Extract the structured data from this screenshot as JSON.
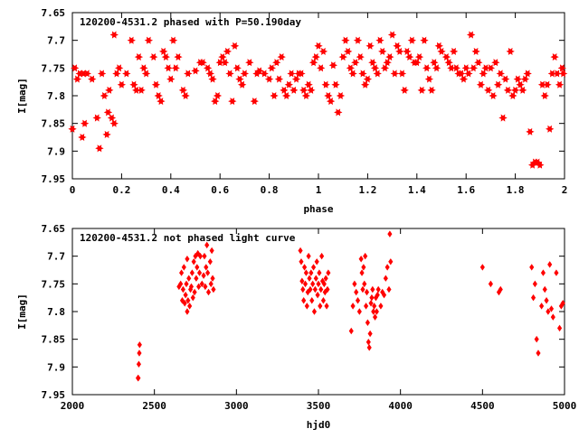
{
  "chart_data": [
    {
      "type": "scatter",
      "title": "120200-4531.2 phased with P=50.190day",
      "xlabel": "phase",
      "ylabel": "I[mag]",
      "xlim": [
        0,
        2
      ],
      "ylim": [
        7.95,
        7.65
      ],
      "y_inverted": true,
      "grid": false,
      "marker": "star",
      "color": "#ff0000",
      "x_ticks": [
        "0",
        "0.2",
        "0.4",
        "0.6",
        "0.8",
        "1",
        "1.2",
        "1.4",
        "1.6",
        "1.8",
        "2"
      ],
      "y_ticks": [
        "7.65",
        "7.7",
        "7.75",
        "7.8",
        "7.85",
        "7.9",
        "7.95"
      ],
      "points": [
        [
          0.0,
          7.86
        ],
        [
          0.01,
          7.75
        ],
        [
          0.02,
          7.77
        ],
        [
          0.03,
          7.76
        ],
        [
          0.04,
          7.875
        ],
        [
          0.045,
          7.76
        ],
        [
          0.05,
          7.85
        ],
        [
          0.06,
          7.76
        ],
        [
          0.08,
          7.77
        ],
        [
          0.1,
          7.84
        ],
        [
          0.11,
          7.895
        ],
        [
          0.12,
          7.76
        ],
        [
          0.13,
          7.8
        ],
        [
          0.14,
          7.87
        ],
        [
          0.145,
          7.83
        ],
        [
          0.15,
          7.79
        ],
        [
          0.16,
          7.84
        ],
        [
          0.17,
          7.69
        ],
        [
          0.17,
          7.85
        ],
        [
          0.18,
          7.76
        ],
        [
          0.19,
          7.75
        ],
        [
          0.2,
          7.78
        ],
        [
          0.22,
          7.76
        ],
        [
          0.24,
          7.7
        ],
        [
          0.25,
          7.78
        ],
        [
          0.26,
          7.79
        ],
        [
          0.27,
          7.73
        ],
        [
          0.28,
          7.79
        ],
        [
          0.29,
          7.75
        ],
        [
          0.3,
          7.76
        ],
        [
          0.31,
          7.7
        ],
        [
          0.33,
          7.73
        ],
        [
          0.34,
          7.78
        ],
        [
          0.35,
          7.8
        ],
        [
          0.36,
          7.81
        ],
        [
          0.37,
          7.72
        ],
        [
          0.38,
          7.73
        ],
        [
          0.39,
          7.75
        ],
        [
          0.4,
          7.77
        ],
        [
          0.41,
          7.7
        ],
        [
          0.42,
          7.75
        ],
        [
          0.43,
          7.73
        ],
        [
          0.45,
          7.79
        ],
        [
          0.46,
          7.8
        ],
        [
          0.47,
          7.76
        ],
        [
          0.5,
          7.755
        ],
        [
          0.52,
          7.74
        ],
        [
          0.53,
          7.74
        ],
        [
          0.55,
          7.75
        ],
        [
          0.56,
          7.76
        ],
        [
          0.57,
          7.77
        ],
        [
          0.58,
          7.81
        ],
        [
          0.59,
          7.8
        ],
        [
          0.6,
          7.74
        ],
        [
          0.61,
          7.73
        ],
        [
          0.62,
          7.74
        ],
        [
          0.63,
          7.72
        ],
        [
          0.64,
          7.76
        ],
        [
          0.65,
          7.81
        ],
        [
          0.66,
          7.71
        ],
        [
          0.67,
          7.75
        ],
        [
          0.68,
          7.77
        ],
        [
          0.69,
          7.78
        ],
        [
          0.7,
          7.76
        ],
        [
          0.72,
          7.74
        ],
        [
          0.74,
          7.81
        ],
        [
          0.75,
          7.76
        ],
        [
          0.76,
          7.755
        ],
        [
          0.78,
          7.76
        ],
        [
          0.8,
          7.77
        ],
        [
          0.81,
          7.75
        ],
        [
          0.82,
          7.8
        ],
        [
          0.83,
          7.74
        ],
        [
          0.84,
          7.77
        ],
        [
          0.85,
          7.73
        ],
        [
          0.86,
          7.79
        ],
        [
          0.87,
          7.8
        ],
        [
          0.88,
          7.78
        ],
        [
          0.89,
          7.76
        ],
        [
          0.9,
          7.79
        ],
        [
          0.91,
          7.77
        ],
        [
          0.92,
          7.76
        ],
        [
          0.93,
          7.76
        ],
        [
          0.94,
          7.79
        ],
        [
          0.95,
          7.8
        ],
        [
          0.96,
          7.78
        ],
        [
          0.97,
          7.79
        ],
        [
          0.98,
          7.74
        ],
        [
          0.99,
          7.73
        ],
        [
          1.0,
          7.71
        ],
        [
          1.01,
          7.75
        ],
        [
          1.02,
          7.72
        ],
        [
          1.03,
          7.78
        ],
        [
          1.04,
          7.8
        ],
        [
          1.05,
          7.81
        ],
        [
          1.06,
          7.745
        ],
        [
          1.07,
          7.78
        ],
        [
          1.08,
          7.83
        ],
        [
          1.09,
          7.8
        ],
        [
          1.1,
          7.73
        ],
        [
          1.11,
          7.7
        ],
        [
          1.12,
          7.72
        ],
        [
          1.13,
          7.75
        ],
        [
          1.14,
          7.76
        ],
        [
          1.15,
          7.74
        ],
        [
          1.16,
          7.7
        ],
        [
          1.17,
          7.73
        ],
        [
          1.18,
          7.76
        ],
        [
          1.19,
          7.78
        ],
        [
          1.2,
          7.77
        ],
        [
          1.21,
          7.71
        ],
        [
          1.22,
          7.74
        ],
        [
          1.23,
          7.75
        ],
        [
          1.24,
          7.76
        ],
        [
          1.25,
          7.7
        ],
        [
          1.26,
          7.72
        ],
        [
          1.27,
          7.75
        ],
        [
          1.28,
          7.74
        ],
        [
          1.29,
          7.73
        ],
        [
          1.3,
          7.69
        ],
        [
          1.31,
          7.76
        ],
        [
          1.32,
          7.71
        ],
        [
          1.33,
          7.72
        ],
        [
          1.34,
          7.76
        ],
        [
          1.35,
          7.79
        ],
        [
          1.36,
          7.72
        ],
        [
          1.37,
          7.73
        ],
        [
          1.38,
          7.7
        ],
        [
          1.39,
          7.74
        ],
        [
          1.4,
          7.74
        ],
        [
          1.41,
          7.73
        ],
        [
          1.42,
          7.79
        ],
        [
          1.43,
          7.7
        ],
        [
          1.44,
          7.75
        ],
        [
          1.45,
          7.77
        ],
        [
          1.46,
          7.79
        ],
        [
          1.47,
          7.74
        ],
        [
          1.48,
          7.75
        ],
        [
          1.49,
          7.71
        ],
        [
          1.5,
          7.72
        ],
        [
          1.52,
          7.73
        ],
        [
          1.53,
          7.74
        ],
        [
          1.54,
          7.75
        ],
        [
          1.55,
          7.72
        ],
        [
          1.56,
          7.75
        ],
        [
          1.57,
          7.76
        ],
        [
          1.58,
          7.76
        ],
        [
          1.59,
          7.77
        ],
        [
          1.6,
          7.75
        ],
        [
          1.61,
          7.76
        ],
        [
          1.62,
          7.69
        ],
        [
          1.63,
          7.75
        ],
        [
          1.64,
          7.72
        ],
        [
          1.65,
          7.74
        ],
        [
          1.66,
          7.78
        ],
        [
          1.67,
          7.76
        ],
        [
          1.68,
          7.75
        ],
        [
          1.69,
          7.79
        ],
        [
          1.7,
          7.75
        ],
        [
          1.71,
          7.8
        ],
        [
          1.72,
          7.74
        ],
        [
          1.73,
          7.78
        ],
        [
          1.74,
          7.76
        ],
        [
          1.75,
          7.84
        ],
        [
          1.76,
          7.77
        ],
        [
          1.77,
          7.79
        ],
        [
          1.78,
          7.72
        ],
        [
          1.79,
          7.8
        ],
        [
          1.8,
          7.79
        ],
        [
          1.81,
          7.77
        ],
        [
          1.82,
          7.78
        ],
        [
          1.83,
          7.79
        ],
        [
          1.84,
          7.77
        ],
        [
          1.85,
          7.76
        ],
        [
          1.86,
          7.865
        ],
        [
          1.87,
          7.925
        ],
        [
          1.88,
          7.92
        ],
        [
          1.89,
          7.92
        ],
        [
          1.9,
          7.925
        ],
        [
          1.91,
          7.78
        ],
        [
          1.92,
          7.8
        ],
        [
          1.93,
          7.78
        ],
        [
          1.94,
          7.86
        ],
        [
          1.95,
          7.76
        ],
        [
          1.96,
          7.73
        ],
        [
          1.97,
          7.76
        ],
        [
          1.98,
          7.78
        ],
        [
          1.99,
          7.75
        ],
        [
          1.995,
          7.76
        ]
      ]
    },
    {
      "type": "scatter",
      "title": "120200-4531.2 not phased light curve",
      "xlabel": "hjd0",
      "ylabel": "I[mag]",
      "xlim": [
        2000,
        5000
      ],
      "ylim": [
        7.95,
        7.65
      ],
      "y_inverted": true,
      "grid": false,
      "marker": "diamond",
      "color": "#ff0000",
      "x_ticks": [
        "2000",
        "2500",
        "3000",
        "3500",
        "4000",
        "4500",
        "5000"
      ],
      "y_ticks": [
        "7.65",
        "7.7",
        "7.75",
        "7.8",
        "7.85",
        "7.9",
        "7.95"
      ],
      "points": [
        [
          2400,
          7.92
        ],
        [
          2402,
          7.92
        ],
        [
          2405,
          7.895
        ],
        [
          2408,
          7.875
        ],
        [
          2410,
          7.86
        ],
        [
          2650,
          7.755
        ],
        [
          2660,
          7.75
        ],
        [
          2665,
          7.73
        ],
        [
          2670,
          7.78
        ],
        [
          2675,
          7.76
        ],
        [
          2680,
          7.72
        ],
        [
          2685,
          7.785
        ],
        [
          2690,
          7.77
        ],
        [
          2695,
          7.75
        ],
        [
          2700,
          7.8
        ],
        [
          2700,
          7.705
        ],
        [
          2705,
          7.78
        ],
        [
          2710,
          7.74
        ],
        [
          2715,
          7.79
        ],
        [
          2720,
          7.76
        ],
        [
          2725,
          7.755
        ],
        [
          2730,
          7.73
        ],
        [
          2735,
          7.775
        ],
        [
          2740,
          7.71
        ],
        [
          2745,
          7.765
        ],
        [
          2750,
          7.7
        ],
        [
          2755,
          7.74
        ],
        [
          2760,
          7.72
        ],
        [
          2765,
          7.695
        ],
        [
          2770,
          7.755
        ],
        [
          2775,
          7.73
        ],
        [
          2780,
          7.7
        ],
        [
          2790,
          7.75
        ],
        [
          2800,
          7.735
        ],
        [
          2805,
          7.7
        ],
        [
          2810,
          7.755
        ],
        [
          2815,
          7.72
        ],
        [
          2820,
          7.68
        ],
        [
          2825,
          7.73
        ],
        [
          2830,
          7.765
        ],
        [
          2840,
          7.71
        ],
        [
          2845,
          7.75
        ],
        [
          2850,
          7.69
        ],
        [
          2855,
          7.74
        ],
        [
          2860,
          7.76
        ],
        [
          3390,
          7.69
        ],
        [
          3395,
          7.71
        ],
        [
          3400,
          7.745
        ],
        [
          3405,
          7.76
        ],
        [
          3410,
          7.78
        ],
        [
          3415,
          7.72
        ],
        [
          3420,
          7.75
        ],
        [
          3425,
          7.73
        ],
        [
          3430,
          7.79
        ],
        [
          3435,
          7.765
        ],
        [
          3440,
          7.7
        ],
        [
          3445,
          7.74
        ],
        [
          3450,
          7.76
        ],
        [
          3455,
          7.73
        ],
        [
          3460,
          7.78
        ],
        [
          3465,
          7.75
        ],
        [
          3470,
          7.72
        ],
        [
          3475,
          7.8
        ],
        [
          3480,
          7.76
        ],
        [
          3485,
          7.74
        ],
        [
          3490,
          7.71
        ],
        [
          3495,
          7.77
        ],
        [
          3500,
          7.75
        ],
        [
          3505,
          7.73
        ],
        [
          3510,
          7.79
        ],
        [
          3515,
          7.76
        ],
        [
          3520,
          7.7
        ],
        [
          3525,
          7.745
        ],
        [
          3530,
          7.78
        ],
        [
          3535,
          7.75
        ],
        [
          3540,
          7.765
        ],
        [
          3545,
          7.74
        ],
        [
          3550,
          7.79
        ],
        [
          3555,
          7.76
        ],
        [
          3560,
          7.73
        ],
        [
          3700,
          7.835
        ],
        [
          3710,
          7.79
        ],
        [
          3720,
          7.75
        ],
        [
          3730,
          7.765
        ],
        [
          3740,
          7.78
        ],
        [
          3750,
          7.8
        ],
        [
          3760,
          7.705
        ],
        [
          3765,
          7.73
        ],
        [
          3770,
          7.76
        ],
        [
          3775,
          7.72
        ],
        [
          3780,
          7.75
        ],
        [
          3785,
          7.7
        ],
        [
          3790,
          7.79
        ],
        [
          3795,
          7.765
        ],
        [
          3800,
          7.82
        ],
        [
          3805,
          7.855
        ],
        [
          3810,
          7.865
        ],
        [
          3815,
          7.84
        ],
        [
          3820,
          7.785
        ],
        [
          3825,
          7.775
        ],
        [
          3830,
          7.76
        ],
        [
          3835,
          7.8
        ],
        [
          3840,
          7.79
        ],
        [
          3845,
          7.81
        ],
        [
          3850,
          7.775
        ],
        [
          3855,
          7.8
        ],
        [
          3860,
          7.77
        ],
        [
          3865,
          7.76
        ],
        [
          3880,
          7.79
        ],
        [
          3890,
          7.765
        ],
        [
          3900,
          7.77
        ],
        [
          3910,
          7.74
        ],
        [
          3920,
          7.72
        ],
        [
          3930,
          7.76
        ],
        [
          3935,
          7.66
        ],
        [
          3940,
          7.71
        ],
        [
          4500,
          7.72
        ],
        [
          4550,
          7.75
        ],
        [
          4600,
          7.765
        ],
        [
          4610,
          7.76
        ],
        [
          4800,
          7.72
        ],
        [
          4810,
          7.775
        ],
        [
          4820,
          7.75
        ],
        [
          4830,
          7.85
        ],
        [
          4840,
          7.875
        ],
        [
          4860,
          7.79
        ],
        [
          4870,
          7.73
        ],
        [
          4880,
          7.76
        ],
        [
          4890,
          7.78
        ],
        [
          4900,
          7.8
        ],
        [
          4910,
          7.715
        ],
        [
          4920,
          7.795
        ],
        [
          4930,
          7.81
        ],
        [
          4950,
          7.73
        ],
        [
          4970,
          7.83
        ],
        [
          4980,
          7.79
        ],
        [
          4990,
          7.785
        ]
      ]
    }
  ]
}
